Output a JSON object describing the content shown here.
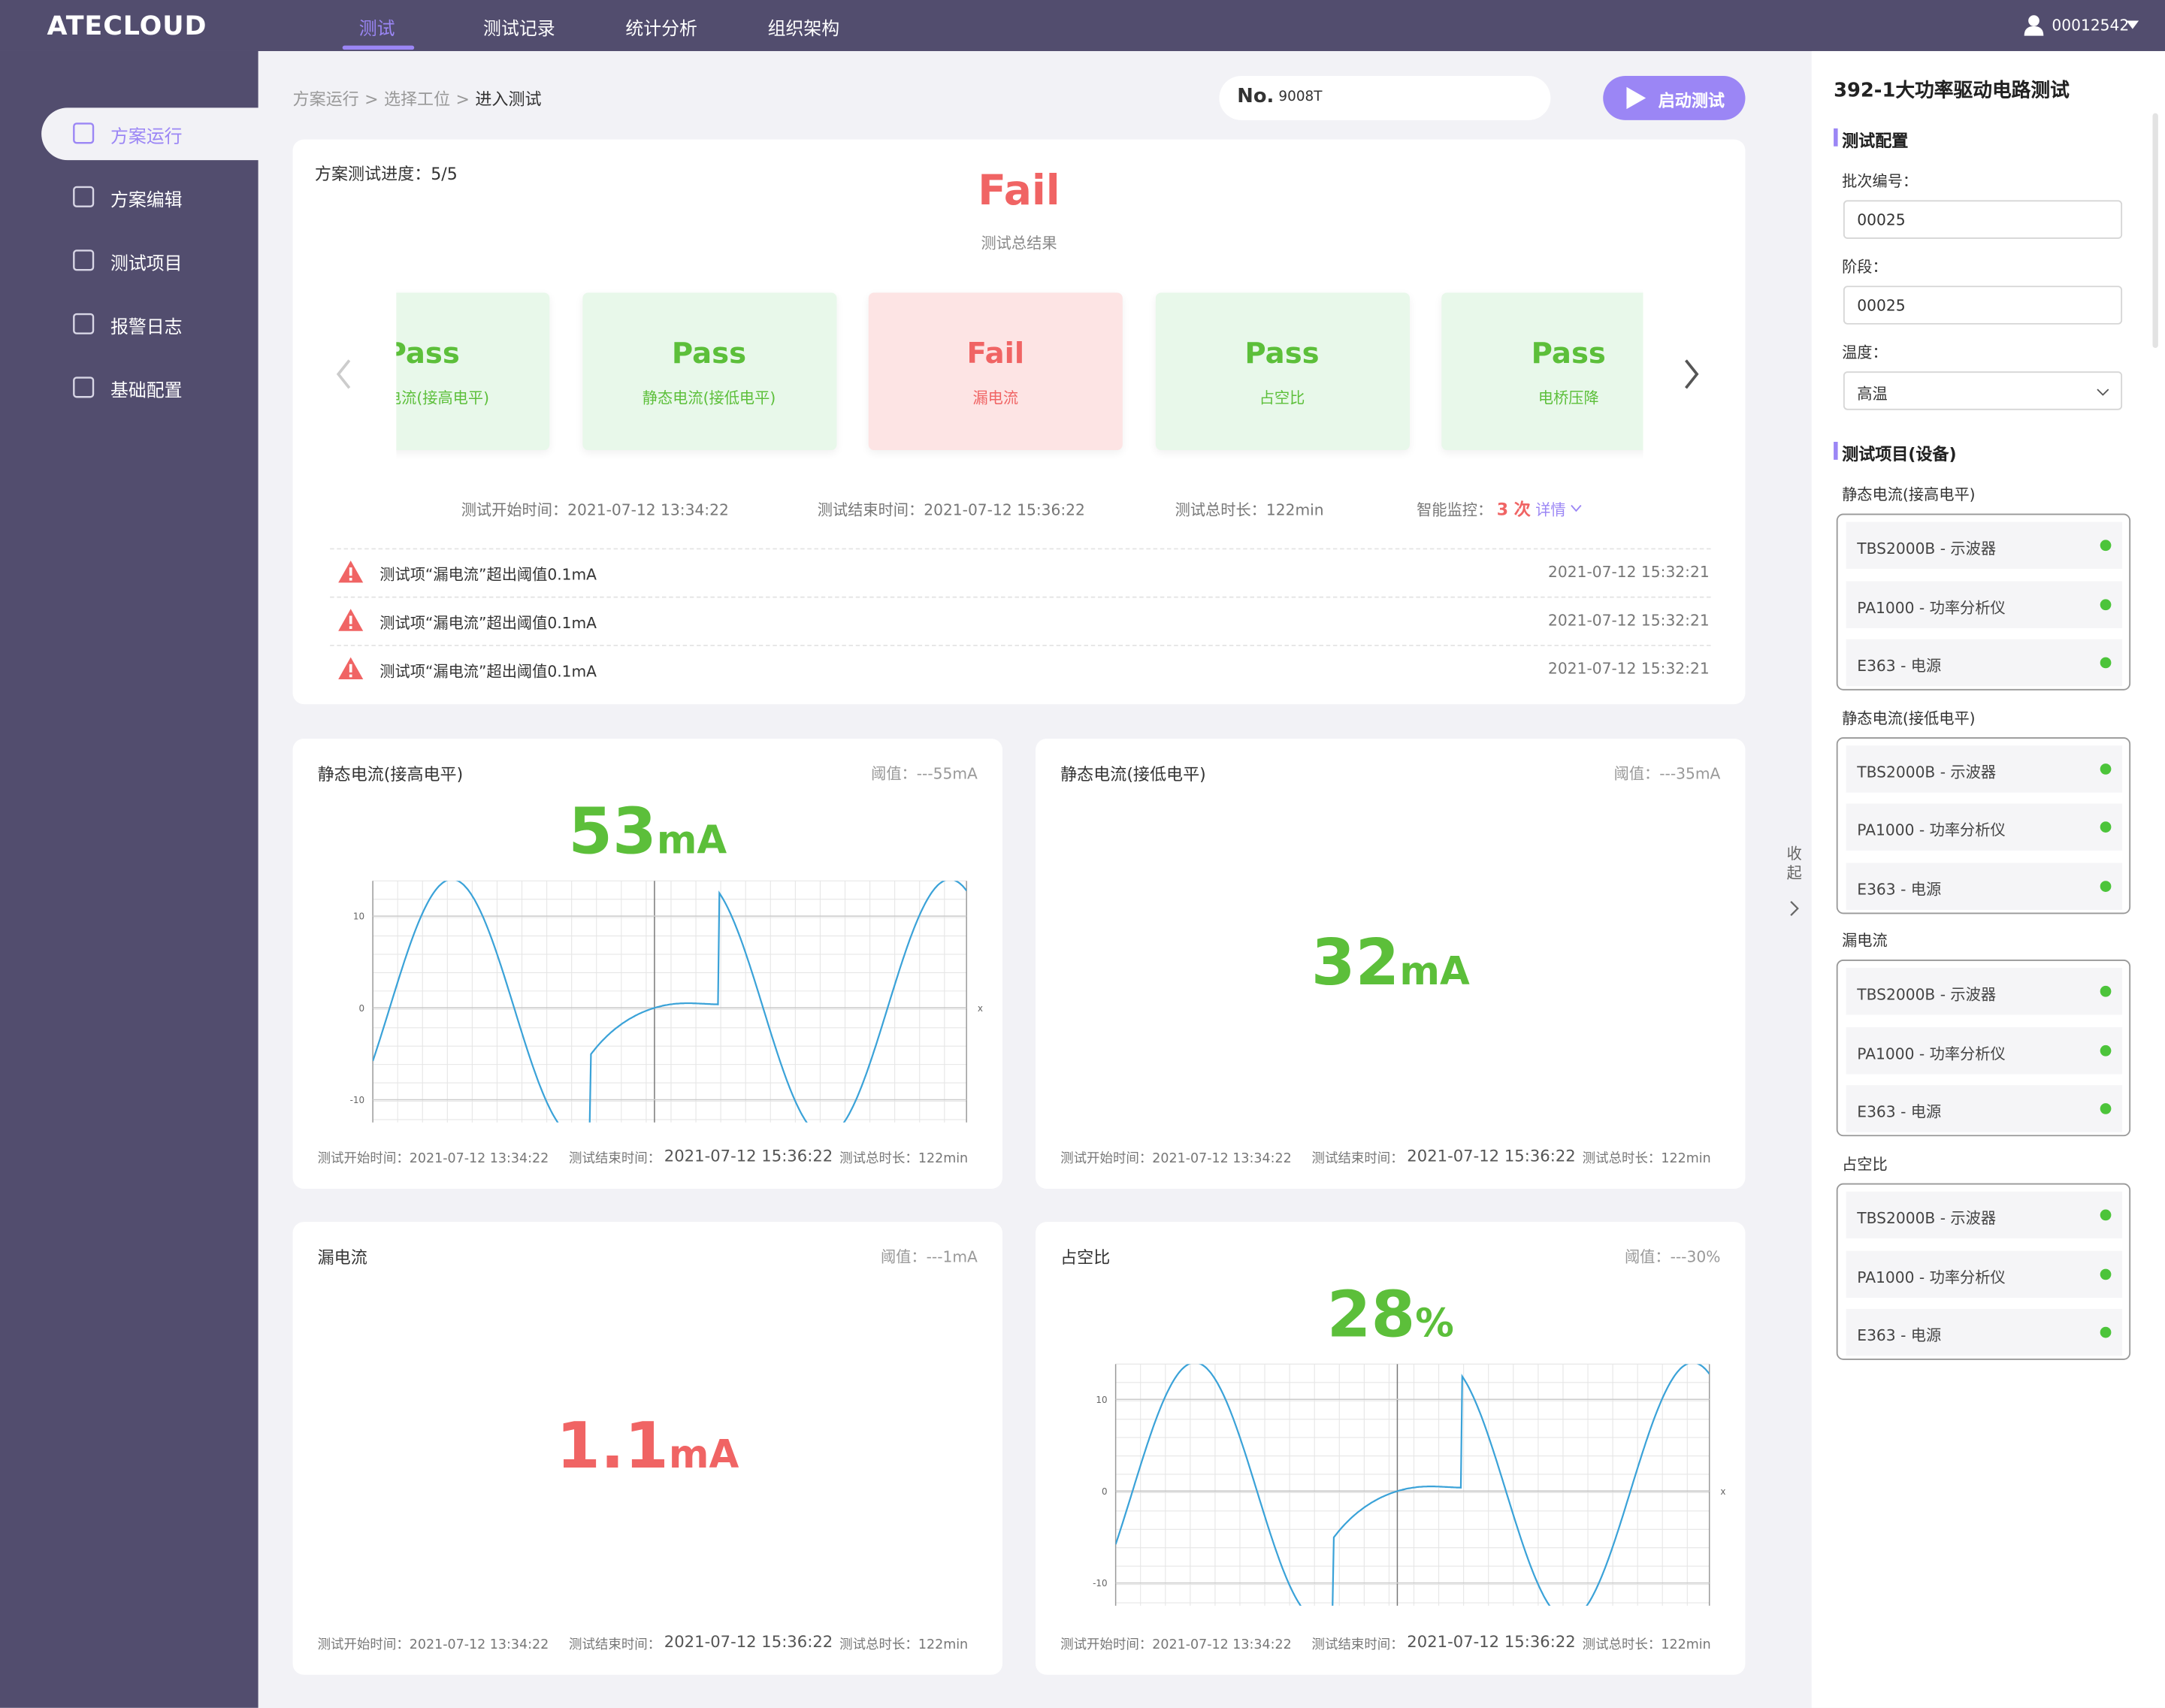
{
  "nav": {
    "logo": "ATECLOUD",
    "tabs": [
      "测试",
      "测试记录",
      "统计分析",
      "组织架构"
    ],
    "user": "00012542"
  },
  "sidebar": {
    "items": [
      "方案运行",
      "方案编辑",
      "测试项目",
      "报警日志",
      "基础配置"
    ]
  },
  "breadcrumb": {
    "items": [
      "方案运行",
      "选择工位",
      "进入测试"
    ],
    "separator": ">"
  },
  "toolbar": {
    "no_label": "No.",
    "no_value": "9008T",
    "start_button": "启动测试"
  },
  "summary": {
    "progress": "方案测试进度：5/5",
    "result": "Fail",
    "result_label": "测试总结果",
    "cards": [
      {
        "status": "Pass",
        "name": "静态电流(接高电平)"
      },
      {
        "status": "Pass",
        "name": "静态电流(接低电平)"
      },
      {
        "status": "Fail",
        "name": "漏电流"
      },
      {
        "status": "Pass",
        "name": "占空比"
      },
      {
        "status": "Pass",
        "name": "电桥压降"
      }
    ],
    "start_time": "测试开始时间：2021-07-12 13:34:22",
    "end_time": "测试结束时间：2021-07-12 15:36:22",
    "duration": "测试总时长：122min",
    "monitor_label": "智能监控：",
    "monitor_count": "3 次",
    "detail": "详情",
    "alarms": [
      {
        "text": "测试项“漏电流”超出阈值0.1mA",
        "time": "2021-07-12 15:32:21"
      },
      {
        "text": "测试项“漏电流”超出阈值0.1mA",
        "time": "2021-07-12 15:32:21"
      },
      {
        "text": "测试项“漏电流”超出阈值0.1mA",
        "time": "2021-07-12 15:32:21"
      }
    ]
  },
  "panels": [
    {
      "title": "静态电流(接高电平)",
      "threshold": "阈值：---55mA",
      "value": 53,
      "unit": "mA",
      "value_color": "#5cbf3a",
      "chart": {
        "yticks": [
          10,
          0,
          -10
        ],
        "xlabel": "x"
      },
      "start": "测试开始时间：2021-07-12 13:34:22",
      "end_label": "测试结束时间：",
      "end_value": "2021-07-12 15:36:22",
      "duration": "测试总时长：122min"
    },
    {
      "title": "静态电流(接低电平)",
      "threshold": "阈值：---35mA",
      "value": 32,
      "unit": "mA",
      "value_color": "#5cbf3a",
      "start": "测试开始时间：2021-07-12 13:34:22",
      "end_label": "测试结束时间：",
      "end_value": "2021-07-12 15:36:22",
      "duration": "测试总时长：122min"
    },
    {
      "title": "漏电流",
      "threshold": "阈值：---1mA",
      "value": 1.1,
      "unit": "mA",
      "value_color": "#f06464",
      "start": "测试开始时间：2021-07-12 13:34:22",
      "end_label": "测试结束时间：",
      "end_value": "2021-07-12 15:36:22",
      "duration": "测试总时长：122min"
    },
    {
      "title": "占空比",
      "threshold": "阈值：---30%",
      "value": 28,
      "unit": "%",
      "value_color": "#5cbf3a",
      "chart": {
        "yticks": [
          10,
          0,
          -10
        ],
        "xlabel": "x"
      },
      "start": "测试开始时间：2021-07-12 13:34:22",
      "end_label": "测试结束时间：",
      "end_value": "2021-07-12 15:36:22",
      "duration": "测试总时长：122min"
    }
  ],
  "collapse": "收起",
  "right": {
    "title": "392-1大功率驱动电路测试",
    "config_title": "测试配置",
    "fields": [
      {
        "label": "批次编号：",
        "value": "00025"
      },
      {
        "label": "阶段：",
        "value": "00025"
      },
      {
        "label": "温度：",
        "value": "高温"
      }
    ],
    "devices_title": "测试项目(设备)",
    "groups": [
      {
        "name": "静态电流(接高电平)",
        "devices": [
          "TBS2000B - 示波器",
          "PA1000 - 功率分析仪",
          "E363 - 电源"
        ]
      },
      {
        "name": "静态电流(接低电平)",
        "devices": [
          "TBS2000B - 示波器",
          "PA1000 - 功率分析仪",
          "E363 - 电源"
        ]
      },
      {
        "name": "漏电流",
        "devices": [
          "TBS2000B - 示波器",
          "PA1000 - 功率分析仪",
          "E363 - 电源"
        ]
      },
      {
        "name": "占空比",
        "devices": [
          "TBS2000B - 示波器",
          "PA1000 - 功率分析仪",
          "E363 - 电源"
        ]
      }
    ]
  }
}
